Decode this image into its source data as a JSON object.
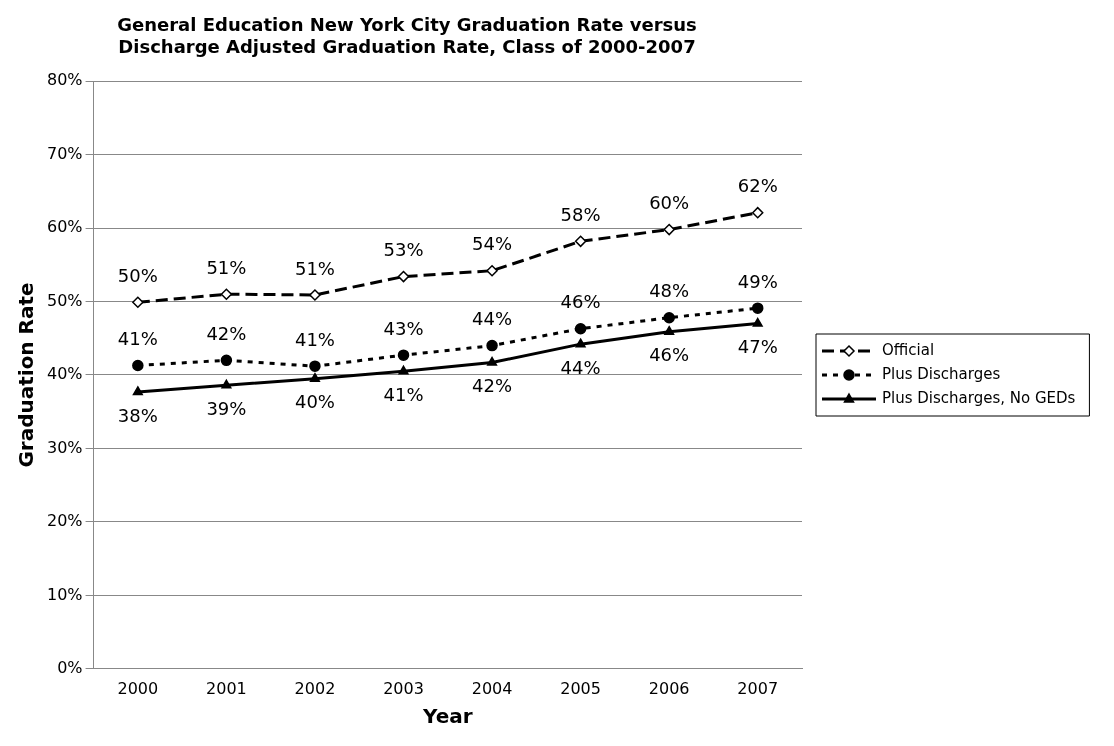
{
  "chart_data": {
    "type": "line",
    "title": "General Education New York City Graduation Rate versus Discharge Adjusted Graduation Rate, Class of 2000-2007",
    "xlabel": "Year",
    "ylabel": "Graduation Rate",
    "categories": [
      "2000",
      "2001",
      "2002",
      "2003",
      "2004",
      "2005",
      "2006",
      "2007"
    ],
    "series": [
      {
        "name": "Official",
        "color": "#000000",
        "marker": "diamond",
        "line_style": "dashed",
        "values": [
          49.9,
          51.0,
          50.9,
          53.4,
          54.2,
          58.2,
          59.8,
          62.1
        ],
        "value_labels": [
          "50%",
          "51%",
          "51%",
          "53%",
          "54%",
          "58%",
          "60%",
          "62%"
        ]
      },
      {
        "name": "Plus Discharges",
        "color": "#000000",
        "marker": "circle",
        "line_style": "dotted",
        "values": [
          41.3,
          42.0,
          41.2,
          42.7,
          44.0,
          46.3,
          47.8,
          49.1
        ],
        "value_labels": [
          "41%",
          "42%",
          "41%",
          "43%",
          "44%",
          "46%",
          "48%",
          "49%"
        ]
      },
      {
        "name": "Plus Discharges, No GEDs",
        "color": "#000000",
        "marker": "triangle",
        "line_style": "solid",
        "values": [
          37.7,
          38.6,
          39.5,
          40.5,
          41.7,
          44.2,
          45.9,
          47.0
        ],
        "value_labels": [
          "38%",
          "39%",
          "40%",
          "41%",
          "42%",
          "44%",
          "46%",
          "47%"
        ]
      }
    ],
    "ylim": [
      0,
      80
    ],
    "yticks": [
      {
        "value": 0,
        "label": "0%"
      },
      {
        "value": 10,
        "label": "10%"
      },
      {
        "value": 20,
        "label": "20%"
      },
      {
        "value": 30,
        "label": "30%"
      },
      {
        "value": 40,
        "label": "40%"
      },
      {
        "value": 50,
        "label": "50%"
      },
      {
        "value": 60,
        "label": "60%"
      },
      {
        "value": 70,
        "label": "70%"
      },
      {
        "value": 80,
        "label": "80%"
      }
    ],
    "grid": "y",
    "legend": "right"
  }
}
